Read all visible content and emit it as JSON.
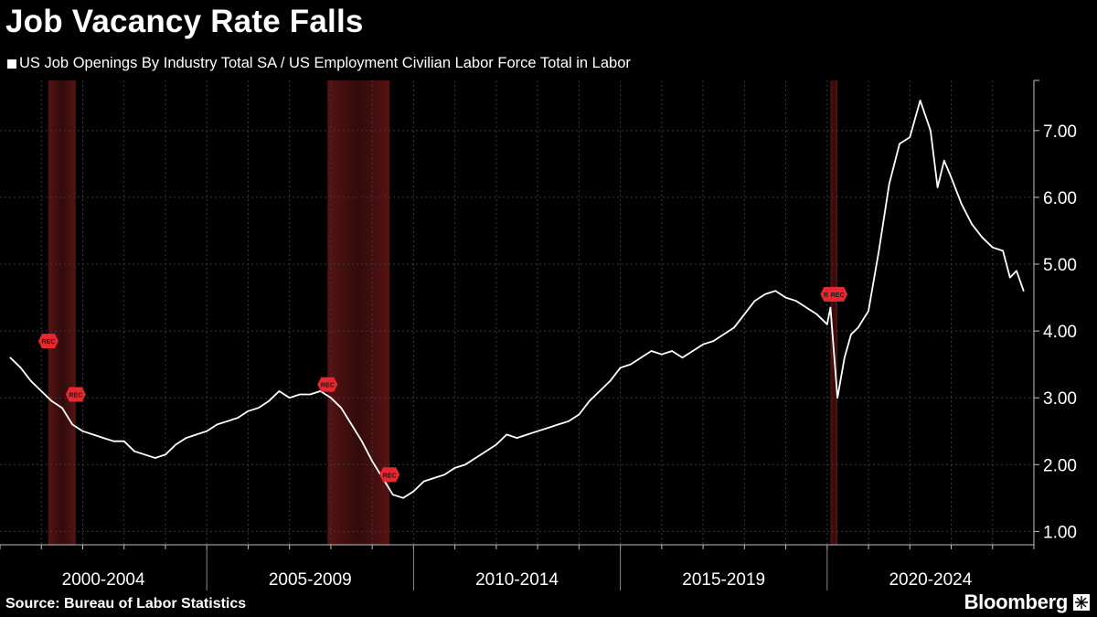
{
  "title": "Job Vacancy Rate Falls",
  "legend": {
    "label": "US Job Openings By Industry Total SA / US Employment Civilian Labor Force Total in Labor",
    "color": "#ffffff"
  },
  "source": "Source: Bureau of Labor Statistics",
  "brand": "Bloomberg",
  "colors": {
    "background": "#000000",
    "line": "#ffffff",
    "recession_band": "#5a1414",
    "marker": "#e8282f",
    "grid": "#3a3a3a"
  },
  "chart_data": {
    "type": "line",
    "title": "Job Vacancy Rate Falls",
    "series": [
      {
        "name": "US Job Openings By Industry Total SA / US Employment Civilian Labor Force Total in Labor",
        "points": [
          [
            2000.25,
            3.6
          ],
          [
            2000.5,
            3.45
          ],
          [
            2000.75,
            3.25
          ],
          [
            2001.0,
            3.1
          ],
          [
            2001.25,
            2.95
          ],
          [
            2001.5,
            2.85
          ],
          [
            2001.75,
            2.6
          ],
          [
            2002.0,
            2.5
          ],
          [
            2002.25,
            2.45
          ],
          [
            2002.5,
            2.4
          ],
          [
            2002.75,
            2.35
          ],
          [
            2003.0,
            2.35
          ],
          [
            2003.25,
            2.2
          ],
          [
            2003.5,
            2.15
          ],
          [
            2003.75,
            2.1
          ],
          [
            2004.0,
            2.15
          ],
          [
            2004.25,
            2.3
          ],
          [
            2004.5,
            2.4
          ],
          [
            2004.75,
            2.45
          ],
          [
            2005.0,
            2.5
          ],
          [
            2005.25,
            2.6
          ],
          [
            2005.5,
            2.65
          ],
          [
            2005.75,
            2.7
          ],
          [
            2006.0,
            2.8
          ],
          [
            2006.25,
            2.85
          ],
          [
            2006.5,
            2.95
          ],
          [
            2006.75,
            3.1
          ],
          [
            2007.0,
            3.0
          ],
          [
            2007.25,
            3.05
          ],
          [
            2007.5,
            3.05
          ],
          [
            2007.75,
            3.1
          ],
          [
            2008.0,
            3.0
          ],
          [
            2008.25,
            2.85
          ],
          [
            2008.5,
            2.6
          ],
          [
            2008.75,
            2.35
          ],
          [
            2009.0,
            2.05
          ],
          [
            2009.25,
            1.8
          ],
          [
            2009.5,
            1.55
          ],
          [
            2009.75,
            1.5
          ],
          [
            2010.0,
            1.6
          ],
          [
            2010.25,
            1.75
          ],
          [
            2010.5,
            1.8
          ],
          [
            2010.75,
            1.85
          ],
          [
            2011.0,
            1.95
          ],
          [
            2011.25,
            2.0
          ],
          [
            2011.5,
            2.1
          ],
          [
            2011.75,
            2.2
          ],
          [
            2012.0,
            2.3
          ],
          [
            2012.25,
            2.45
          ],
          [
            2012.5,
            2.4
          ],
          [
            2012.75,
            2.45
          ],
          [
            2013.0,
            2.5
          ],
          [
            2013.25,
            2.55
          ],
          [
            2013.5,
            2.6
          ],
          [
            2013.75,
            2.65
          ],
          [
            2014.0,
            2.75
          ],
          [
            2014.25,
            2.95
          ],
          [
            2014.5,
            3.1
          ],
          [
            2014.75,
            3.25
          ],
          [
            2015.0,
            3.45
          ],
          [
            2015.25,
            3.5
          ],
          [
            2015.5,
            3.6
          ],
          [
            2015.75,
            3.7
          ],
          [
            2016.0,
            3.65
          ],
          [
            2016.25,
            3.7
          ],
          [
            2016.5,
            3.6
          ],
          [
            2016.75,
            3.7
          ],
          [
            2017.0,
            3.8
          ],
          [
            2017.25,
            3.85
          ],
          [
            2017.5,
            3.95
          ],
          [
            2017.75,
            4.05
          ],
          [
            2018.0,
            4.25
          ],
          [
            2018.25,
            4.45
          ],
          [
            2018.5,
            4.55
          ],
          [
            2018.75,
            4.6
          ],
          [
            2019.0,
            4.5
          ],
          [
            2019.25,
            4.45
          ],
          [
            2019.5,
            4.35
          ],
          [
            2019.75,
            4.25
          ],
          [
            2020.0,
            4.1
          ],
          [
            2020.08,
            4.35
          ],
          [
            2020.25,
            3.0
          ],
          [
            2020.42,
            3.6
          ],
          [
            2020.58,
            3.95
          ],
          [
            2020.75,
            4.05
          ],
          [
            2021.0,
            4.3
          ],
          [
            2021.25,
            5.2
          ],
          [
            2021.5,
            6.2
          ],
          [
            2021.75,
            6.8
          ],
          [
            2022.0,
            6.9
          ],
          [
            2022.25,
            7.45
          ],
          [
            2022.5,
            7.0
          ],
          [
            2022.67,
            6.15
          ],
          [
            2022.83,
            6.55
          ],
          [
            2023.0,
            6.3
          ],
          [
            2023.25,
            5.9
          ],
          [
            2023.5,
            5.6
          ],
          [
            2023.75,
            5.4
          ],
          [
            2024.0,
            5.25
          ],
          [
            2024.25,
            5.2
          ],
          [
            2024.42,
            4.8
          ],
          [
            2024.58,
            4.9
          ],
          [
            2024.75,
            4.6
          ]
        ]
      }
    ],
    "x_range": [
      2000.0,
      2025.0
    ],
    "x_categories": [
      "2000-2004",
      "2005-2009",
      "2010-2014",
      "2015-2019",
      "2020-2024"
    ],
    "y_ticks": [
      "1.00",
      "2.00",
      "3.00",
      "4.00",
      "5.00",
      "6.00",
      "7.00"
    ],
    "y_tick_values": [
      1,
      2,
      3,
      4,
      5,
      6,
      7
    ],
    "ylim": [
      0.8,
      7.75
    ],
    "recessions": [
      {
        "label": "REC",
        "start": 2001.17,
        "end": 2001.83
      },
      {
        "label": "REC",
        "start": 2007.92,
        "end": 2009.42
      },
      {
        "label": "REC",
        "start": 2020.08,
        "end": 2020.25
      }
    ],
    "rec_markers": [
      {
        "label": "REC",
        "x": 2001.17,
        "y": 3.85
      },
      {
        "label": "REC",
        "x": 2001.83,
        "y": 3.05
      },
      {
        "label": "REC",
        "x": 2007.92,
        "y": 3.2
      },
      {
        "label": "REC",
        "x": 2009.42,
        "y": 1.85
      },
      {
        "label": "REC",
        "x": 2020.08,
        "y": 4.55
      },
      {
        "label": "REC",
        "x": 2020.25,
        "y": 4.55
      }
    ],
    "legend_position": "top-left",
    "grid": true
  }
}
